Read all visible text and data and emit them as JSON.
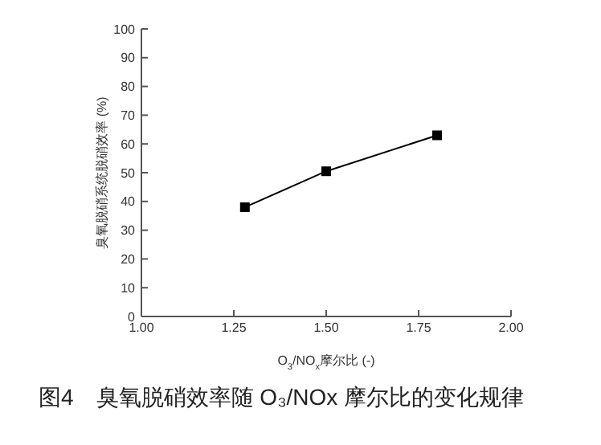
{
  "chart_data": {
    "type": "line",
    "xlabel": "O$_{3}$/NO$_{x}$摩尔比 (-)",
    "ylabel": "臭氧脱硝系统脱硝效率 (%)",
    "annotations": [
      "图4　臭氧脱硝效率随 O₃/NOx 摩尔比的变化规律"
    ],
    "x": [
      1.28,
      1.5,
      1.8
    ],
    "series": [
      {
        "color": "#000000",
        "values": [
          38,
          50.5,
          63
        ]
      }
    ],
    "xlim": [
      1.0,
      2.0
    ],
    "xticks": [
      {
        "value": 1.0,
        "label": "1.00"
      },
      1.25,
      {
        "value": 1.5,
        "label": "1.50"
      },
      1.75,
      {
        "value": 2.0,
        "label": "2.00"
      }
    ],
    "ylim": [
      0,
      100
    ],
    "yticks": [
      0,
      10,
      20,
      30,
      40,
      50,
      60,
      70,
      80,
      90,
      100
    ],
    "grid": false,
    "legend": false,
    "marker": "square",
    "line_style": "solid"
  }
}
